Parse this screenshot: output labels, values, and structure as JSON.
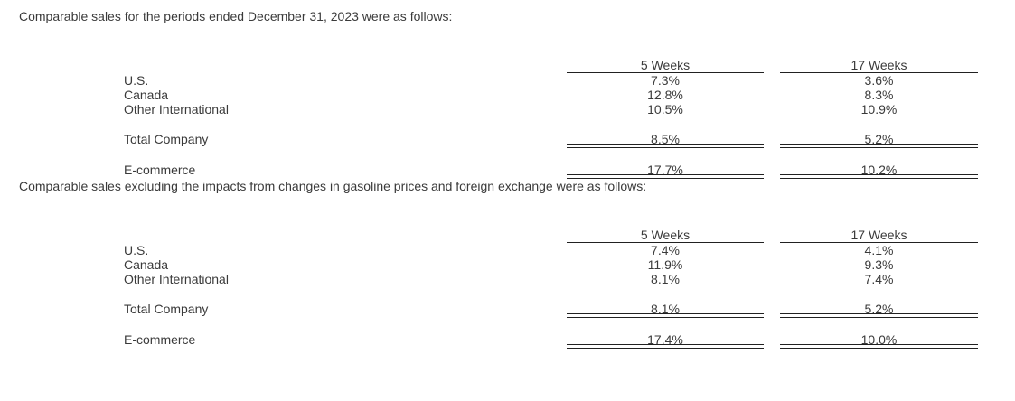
{
  "page": {
    "background": "#ffffff",
    "text_color": "#3a3a3a",
    "rule_color": "#212121"
  },
  "sections": [
    {
      "intro": "Comparable sales for the periods ended December 31, 2023 were as follows:",
      "columns": {
        "c1": "5 Weeks",
        "c2": "17 Weeks"
      },
      "rows": [
        {
          "label": "U.S.",
          "w5": "7.3%",
          "w17": "3.6%"
        },
        {
          "label": "Canada",
          "w5": "12.8%",
          "w17": "8.3%"
        },
        {
          "label": "Other International",
          "w5": "10.5%",
          "w17": "10.9%"
        }
      ],
      "total": {
        "label": "Total Company",
        "w5": "8.5%",
        "w17": "5.2%"
      },
      "ecommerce": {
        "label": "E-commerce",
        "w5": "17.7%",
        "w17": "10.2%"
      }
    },
    {
      "intro": "Comparable sales excluding the impacts from changes in gasoline prices and foreign exchange were as follows:",
      "columns": {
        "c1": "5 Weeks",
        "c2": "17 Weeks"
      },
      "rows": [
        {
          "label": "U.S.",
          "w5": "7.4%",
          "w17": "4.1%"
        },
        {
          "label": "Canada",
          "w5": "11.9%",
          "w17": "9.3%"
        },
        {
          "label": "Other International",
          "w5": "8.1%",
          "w17": "7.4%"
        }
      ],
      "total": {
        "label": "Total Company",
        "w5": "8.1%",
        "w17": "5.2%"
      },
      "ecommerce": {
        "label": "E-commerce",
        "w5": "17.4%",
        "w17": "10.0%"
      }
    }
  ]
}
